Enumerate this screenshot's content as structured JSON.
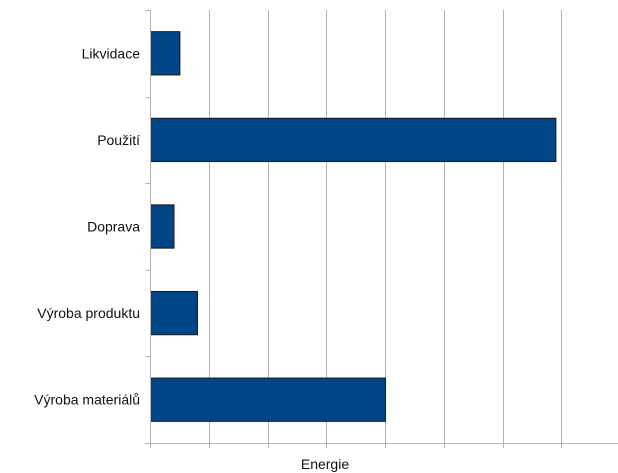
{
  "chart_data": {
    "type": "bar",
    "orientation": "horizontal",
    "categories": [
      "Likvidace",
      "Použití",
      "Doprava",
      "Výroba produktu",
      "Výroba materiálů"
    ],
    "values": [
      5,
      69,
      4,
      8,
      40
    ],
    "xlabel": "Energie",
    "ylabel": "",
    "xlim": [
      0,
      80
    ],
    "x_gridline_count": 8,
    "x_tick_labels_shown": false,
    "grid": "vertical",
    "legend": "none",
    "bar_color": "#004586",
    "bar_outline_color": "#1a1a1a",
    "grid_color": "#b3b3b3"
  }
}
